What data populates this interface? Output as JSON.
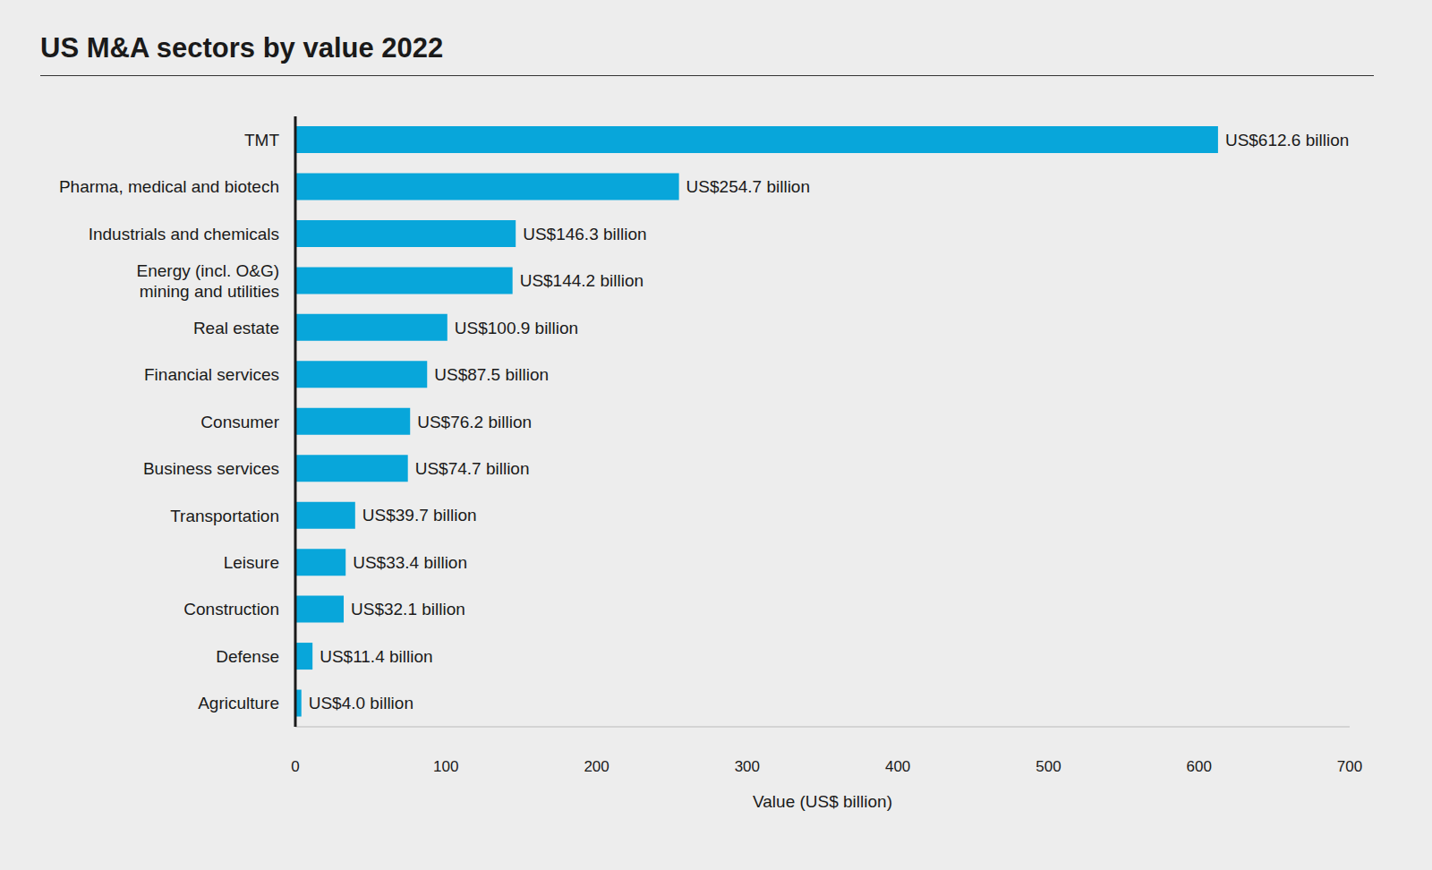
{
  "chart_data": {
    "type": "bar",
    "title": "US M&A sectors by value 2022",
    "x_label": "Value (US$ billion)",
    "orientation": "horizontal",
    "categories": [
      "TMT",
      "Pharma, medical and biotech",
      "Industrials and chemicals",
      "Energy (incl. O&G)\nmining and utilities",
      "Real estate",
      "Financial services",
      "Consumer",
      "Business services",
      "Transportation",
      "Leisure",
      "Construction",
      "Defense",
      "Agriculture"
    ],
    "values": [
      612.6,
      254.7,
      146.3,
      144.2,
      100.9,
      87.5,
      76.2,
      74.7,
      39.7,
      33.4,
      32.1,
      11.4,
      4.0
    ],
    "value_labels": [
      "US$612.6 billion",
      "US$254.7 billion",
      "US$146.3 billion",
      "US$144.2 billion",
      "US$100.9 billion",
      "US$87.5 billion",
      "US$76.2 billion",
      "US$74.7 billion",
      "US$39.7 billion",
      "US$33.4 billion",
      "US$32.1 billion",
      "US$11.4 billion",
      "US$4.0 billion"
    ],
    "color": "#08a6da",
    "xlim": [
      0,
      700
    ],
    "xticks": [
      0,
      100,
      200,
      300,
      400,
      500,
      600,
      700
    ],
    "grid": false,
    "data_labels": true
  }
}
